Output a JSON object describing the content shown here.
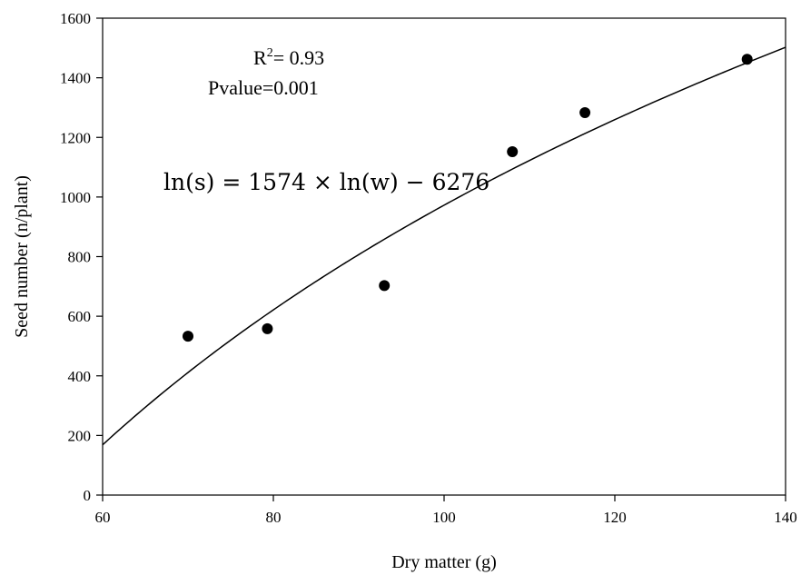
{
  "chart_data": {
    "type": "scatter",
    "title": "",
    "xlabel": "Dry matter (g)",
    "ylabel": "Seed number (n/plant)",
    "xlim": [
      60,
      140
    ],
    "ylim": [
      0,
      1600
    ],
    "x_ticks": [
      60,
      80,
      100,
      120,
      140
    ],
    "y_ticks": [
      0,
      200,
      400,
      600,
      800,
      1000,
      1200,
      1400,
      1600
    ],
    "grid": false,
    "legend": "none",
    "points": [
      {
        "x": 70,
        "y": 533
      },
      {
        "x": 79.3,
        "y": 558
      },
      {
        "x": 93,
        "y": 703
      },
      {
        "x": 108,
        "y": 1152
      },
      {
        "x": 116.5,
        "y": 1283
      },
      {
        "x": 135.5,
        "y": 1462
      }
    ],
    "fit": {
      "kind": "logarithmic",
      "coefficient": 1574,
      "intercept": -6276,
      "equation_text": "ln(s) = 1574 × ln(w) − 6276"
    },
    "annotations": {
      "r2_label": "R",
      "r2_sup": "2",
      "r2_value": "= 0.93",
      "pvalue": "Pvalue=0.001"
    },
    "colors": {
      "points": "#000000",
      "fit_line": "#000000",
      "axes": "#000000"
    }
  }
}
